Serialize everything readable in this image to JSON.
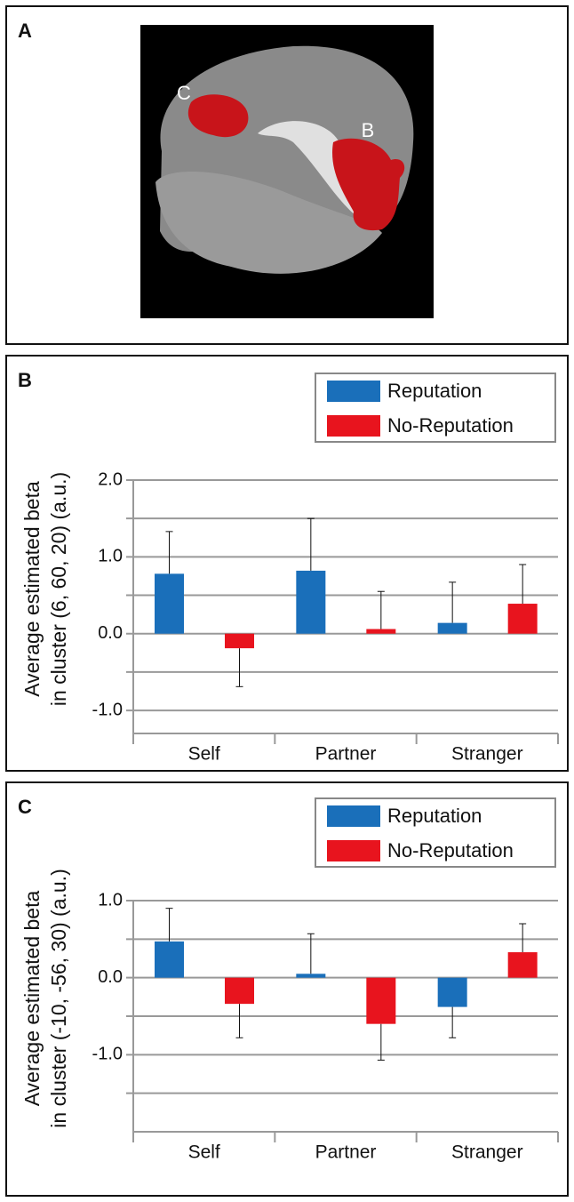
{
  "figure": {
    "panel_labels": [
      "A",
      "B",
      "C"
    ],
    "brain_labels": [
      "C",
      "B"
    ]
  },
  "chart_data": [
    {
      "type": "bar",
      "panel": "B",
      "ylabel": [
        "Average estimated beta",
        "in cluster (6, 60, 20) (a.u.)"
      ],
      "categories": [
        "Self",
        "Partner",
        "Stranger"
      ],
      "series": [
        {
          "name": "Reputation",
          "color": "#1a6fba",
          "values": [
            0.78,
            0.82,
            0.14
          ],
          "errors": [
            0.55,
            0.68,
            0.53
          ]
        },
        {
          "name": "No-Reputation",
          "color": "#e8141e",
          "values": [
            -0.19,
            0.06,
            0.39
          ],
          "errors": [
            0.5,
            0.49,
            0.51
          ]
        }
      ],
      "ylim": [
        -1.3,
        2.0
      ],
      "yticks": [
        {
          "value": 2,
          "label": "2.0"
        },
        {
          "value": 1,
          "label": "1.0"
        },
        {
          "value": 0,
          "label": "0.0"
        },
        {
          "value": -1,
          "label": "-1.0"
        }
      ],
      "minor_yticks": [
        1.5,
        0.5,
        -0.5
      ],
      "grid": true,
      "legend": "upper right"
    },
    {
      "type": "bar",
      "panel": "C",
      "ylabel": [
        "Average estimated beta",
        "in cluster (-10, -56, 30) (a.u.)"
      ],
      "categories": [
        "Self",
        "Partner",
        "Stranger"
      ],
      "series": [
        {
          "name": "Reputation",
          "color": "#1a6fba",
          "values": [
            0.47,
            0.05,
            -0.38
          ],
          "errors": [
            0.43,
            0.52,
            0.4
          ]
        },
        {
          "name": "No-Reputation",
          "color": "#e8141e",
          "values": [
            -0.34,
            -0.6,
            0.33
          ],
          "errors": [
            0.44,
            0.47,
            0.37
          ]
        }
      ],
      "ylim": [
        -2.0,
        1.0
      ],
      "yticks": [
        {
          "value": 1,
          "label": "1.0"
        },
        {
          "value": 0,
          "label": "0.0"
        },
        {
          "value": -1,
          "label": "-1.0"
        }
      ],
      "minor_yticks": [
        0.5,
        -0.5,
        -1.5
      ],
      "grid": true,
      "legend": "upper right"
    }
  ]
}
